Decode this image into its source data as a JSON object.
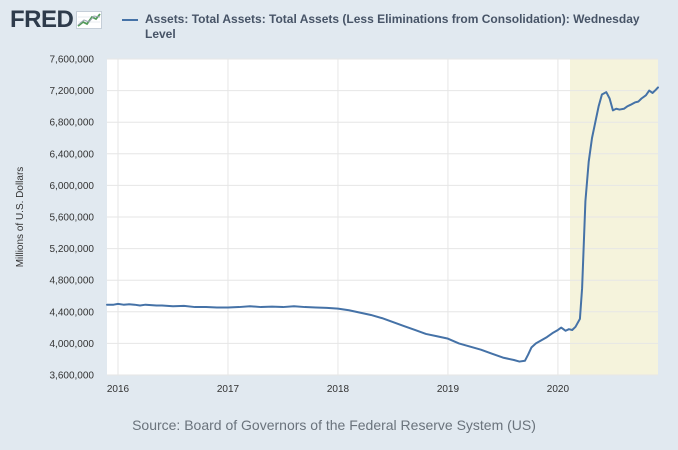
{
  "header": {
    "logo_text": "FRED"
  },
  "colors": {
    "background": "#e1e9f0",
    "plot_background": "#ffffff",
    "series_line": "#4572a7",
    "recession_shade": "#f5f3dc",
    "grid": "#e6e6e6"
  },
  "source_text": "Source: Board of Governors of the Federal Reserve System (US)",
  "chart_data": {
    "type": "line",
    "title": "",
    "xlabel": "",
    "ylabel": "Millions of U.S. Dollars",
    "x_unit": "year",
    "xlim": [
      2015.9,
      2020.91
    ],
    "ylim": [
      3600000,
      7600000
    ],
    "grid": true,
    "legend_position": "top",
    "y_ticks": [
      3600000,
      4000000,
      4400000,
      4800000,
      5200000,
      5600000,
      6000000,
      6400000,
      6800000,
      7200000,
      7600000
    ],
    "y_tick_labels": [
      "3,600,000",
      "4,000,000",
      "4,400,000",
      "4,800,000",
      "5,200,000",
      "5,600,000",
      "6,000,000",
      "6,400,000",
      "6,800,000",
      "7,200,000",
      "7,600,000"
    ],
    "x_ticks": [
      2016,
      2017,
      2018,
      2019,
      2020
    ],
    "x_tick_labels": [
      "2016",
      "2017",
      "2018",
      "2019",
      "2020"
    ],
    "shaded_regions": [
      {
        "start": 2020.11,
        "end": 2020.91
      }
    ],
    "series": [
      {
        "name": "Assets: Total Assets: Total Assets (Less Eliminations from Consolidation): Wednesday Level",
        "x": [
          2015.9,
          2015.96,
          2016.0,
          2016.05,
          2016.1,
          2016.15,
          2016.2,
          2016.25,
          2016.3,
          2016.35,
          2016.4,
          2016.5,
          2016.6,
          2016.7,
          2016.8,
          2016.9,
          2017.0,
          2017.1,
          2017.2,
          2017.3,
          2017.4,
          2017.5,
          2017.6,
          2017.7,
          2017.8,
          2017.9,
          2018.0,
          2018.1,
          2018.2,
          2018.3,
          2018.4,
          2018.5,
          2018.6,
          2018.7,
          2018.8,
          2018.9,
          2019.0,
          2019.1,
          2019.2,
          2019.3,
          2019.4,
          2019.5,
          2019.6,
          2019.65,
          2019.7,
          2019.73,
          2019.76,
          2019.8,
          2019.85,
          2019.9,
          2019.95,
          2020.0,
          2020.03,
          2020.07,
          2020.1,
          2020.13,
          2020.16,
          2020.2,
          2020.22,
          2020.25,
          2020.28,
          2020.31,
          2020.34,
          2020.37,
          2020.4,
          2020.44,
          2020.47,
          2020.5,
          2020.53,
          2020.56,
          2020.6,
          2020.63,
          2020.66,
          2020.7,
          2020.73,
          2020.76,
          2020.8,
          2020.83,
          2020.86,
          2020.89,
          2020.91
        ],
        "y": [
          4490000,
          4490000,
          4500000,
          4490000,
          4495000,
          4490000,
          4480000,
          4490000,
          4485000,
          4480000,
          4480000,
          4470000,
          4475000,
          4460000,
          4460000,
          4455000,
          4455000,
          4460000,
          4470000,
          4460000,
          4465000,
          4460000,
          4470000,
          4460000,
          4455000,
          4450000,
          4440000,
          4420000,
          4390000,
          4360000,
          4320000,
          4270000,
          4220000,
          4170000,
          4120000,
          4090000,
          4060000,
          4000000,
          3960000,
          3920000,
          3870000,
          3820000,
          3790000,
          3770000,
          3780000,
          3860000,
          3950000,
          4000000,
          4040000,
          4080000,
          4130000,
          4170000,
          4200000,
          4160000,
          4180000,
          4170000,
          4210000,
          4310000,
          4700000,
          5800000,
          6300000,
          6600000,
          6800000,
          7000000,
          7150000,
          7180000,
          7100000,
          6950000,
          6970000,
          6960000,
          6970000,
          7000000,
          7020000,
          7050000,
          7060000,
          7100000,
          7140000,
          7200000,
          7170000,
          7210000,
          7240000
        ]
      }
    ]
  }
}
